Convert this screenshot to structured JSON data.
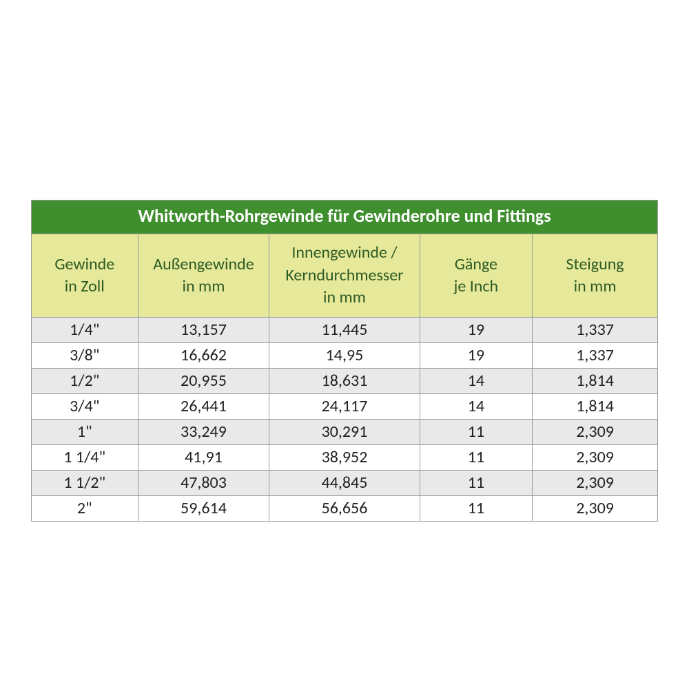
{
  "table": {
    "type": "table",
    "title": "Whitworth-Rohrgewinde für Gewinderohre und Fittings",
    "title_bg": "#3f8f2e",
    "title_color": "#ffffff",
    "title_fontsize": 26,
    "header_bg": "#e6e89a",
    "header_color": "#2d5a24",
    "header_fontsize": 24,
    "cell_fontsize": 24,
    "cell_color": "#222222",
    "row_odd_bg": "#e9e9e9",
    "row_even_bg": "#ffffff",
    "border_color": "#9a9a9a",
    "columns": [
      {
        "line1": "Gewinde",
        "line2": "in Zoll",
        "width_pct": 17
      },
      {
        "line1": "Außengewinde",
        "line2": "in mm",
        "width_pct": 21
      },
      {
        "line1": "Innengewinde /",
        "line2": "Kerndurchmesser",
        "line3": "in mm",
        "width_pct": 24
      },
      {
        "line1": "Gänge",
        "line2": "je Inch",
        "width_pct": 18
      },
      {
        "line1": "Steigung",
        "line2": "in mm",
        "width_pct": 20
      }
    ],
    "rows": [
      [
        "1/4\"",
        "13,157",
        "11,445",
        "19",
        "1,337"
      ],
      [
        "3/8\"",
        "16,662",
        "14,95",
        "19",
        "1,337"
      ],
      [
        "1/2\"",
        "20,955",
        "18,631",
        "14",
        "1,814"
      ],
      [
        "3/4\"",
        "26,441",
        "24,117",
        "14",
        "1,814"
      ],
      [
        "1\"",
        "33,249",
        "30,291",
        "11",
        "2,309"
      ],
      [
        "1 1/4\"",
        "41,91",
        "38,952",
        "11",
        "2,309"
      ],
      [
        "1 1/2\"",
        "47,803",
        "44,845",
        "11",
        "2,309"
      ],
      [
        "2\"",
        "59,614",
        "56,656",
        "11",
        "2,309"
      ]
    ]
  }
}
